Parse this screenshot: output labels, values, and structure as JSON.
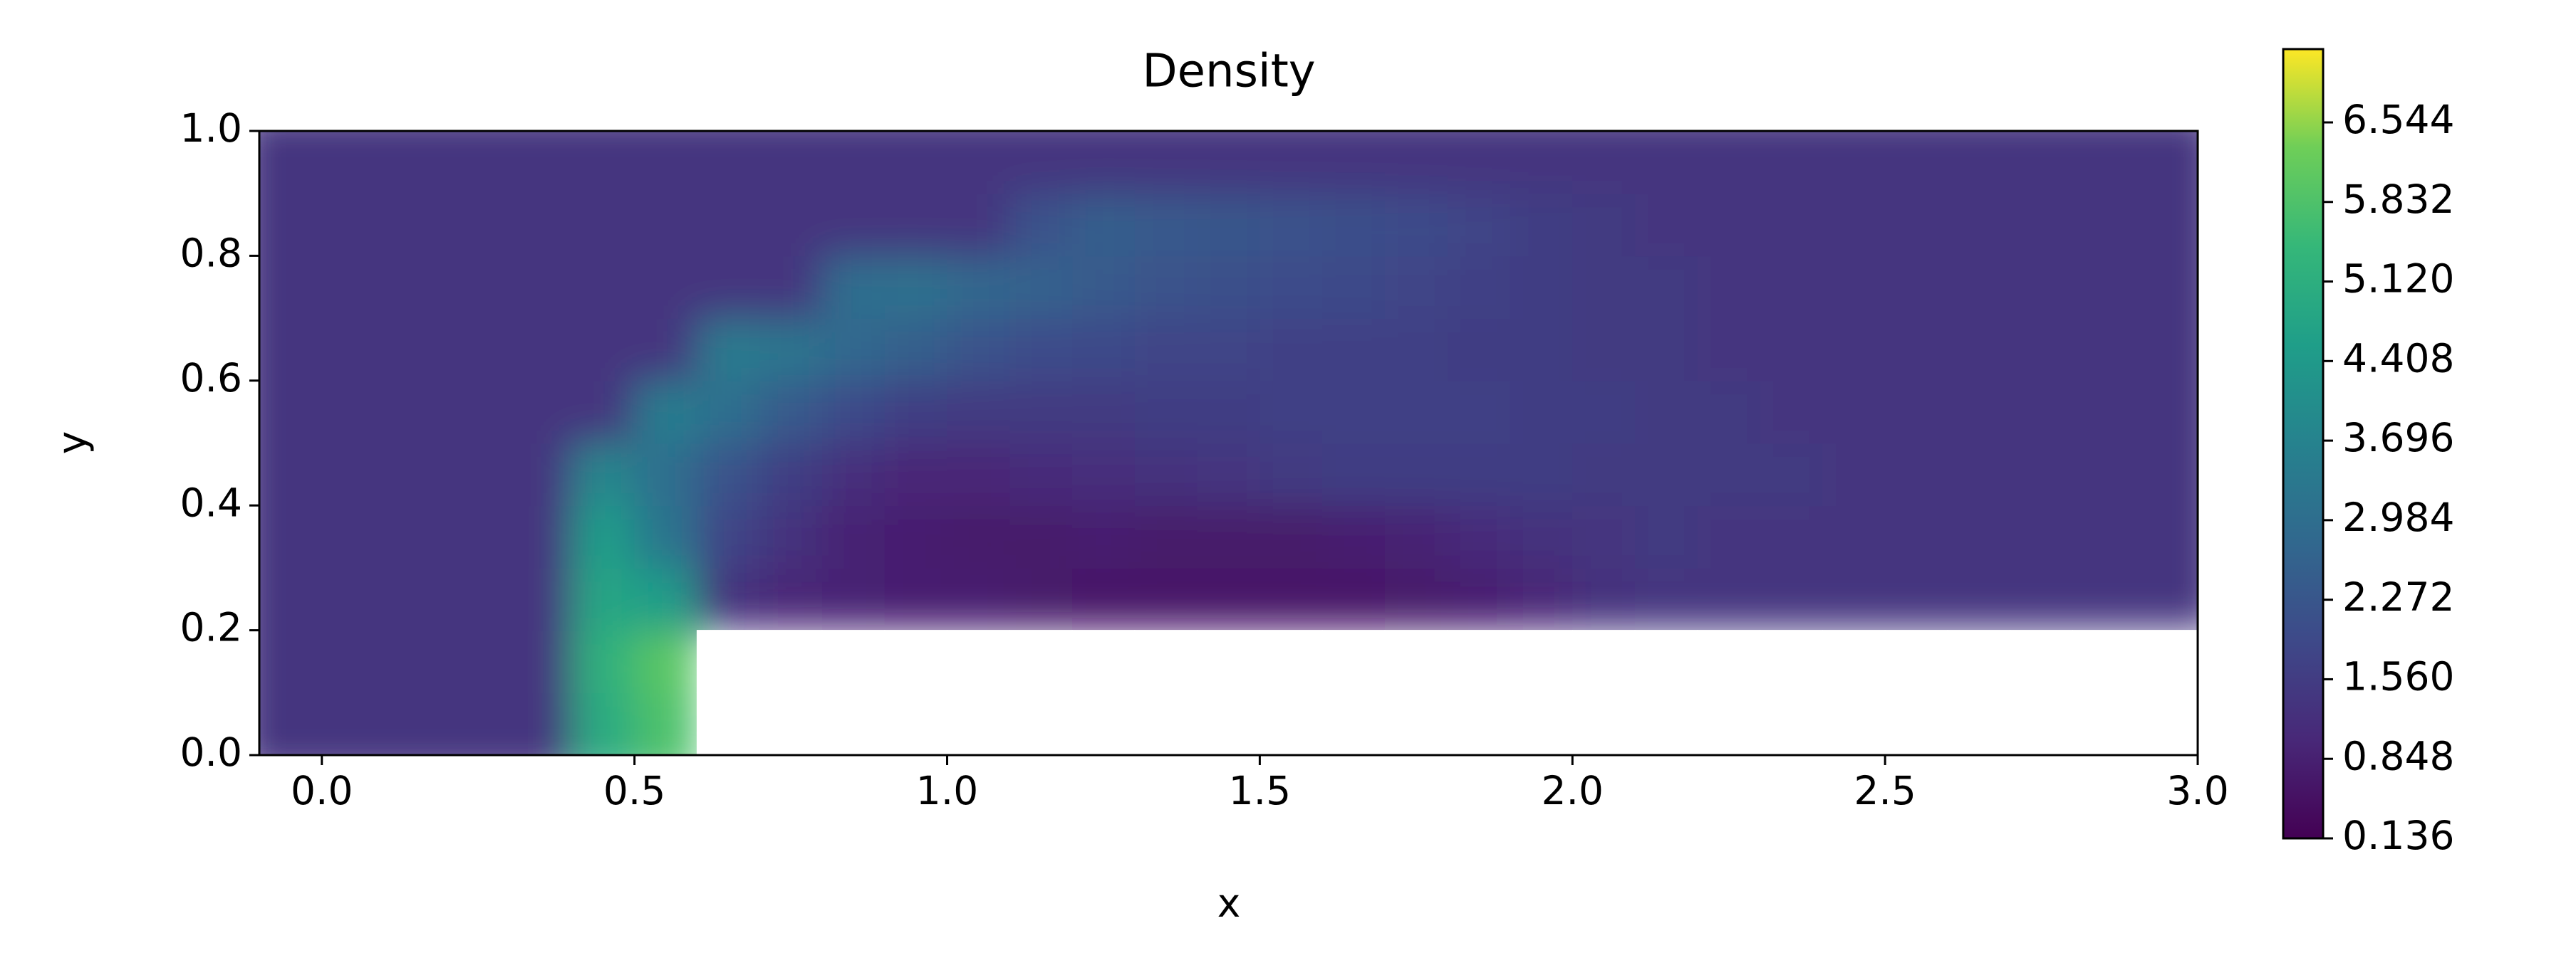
{
  "chart_data": {
    "type": "heatmap",
    "title": "Density",
    "xlabel": "x",
    "ylabel": "y",
    "xlim": [
      -0.1,
      3.0
    ],
    "ylim": [
      0,
      1
    ],
    "xticks": [
      {
        "value": 0,
        "label": "0.0"
      },
      0.5,
      {
        "value": 1,
        "label": "1.0"
      },
      1.5,
      {
        "value": 2,
        "label": "2.0"
      },
      2.5,
      {
        "value": 3,
        "label": "3.0"
      }
    ],
    "yticks": [
      {
        "value": 0,
        "label": "0.0"
      },
      0.2,
      0.4,
      0.6,
      0.8,
      {
        "value": 1,
        "label": "1.0"
      }
    ],
    "zlim": [
      0.136,
      7.2
    ],
    "zticks": [
      0.136,
      0.848,
      {
        "value": 1.56,
        "label": "1.560"
      },
      2.272,
      2.984,
      3.696,
      4.408,
      {
        "value": 5.12,
        "label": "5.120"
      },
      5.832,
      6.544
    ],
    "colormap": "viridis",
    "x": [
      -0.05,
      0.05,
      0.15,
      0.25,
      0.35,
      0.45,
      0.55,
      0.65,
      0.75,
      0.85,
      0.95,
      1.05,
      1.15,
      1.25,
      1.35,
      1.45,
      1.55,
      1.65,
      1.75,
      1.85,
      1.95,
      2.05,
      2.15,
      2.25,
      2.35,
      2.45,
      2.55,
      2.65,
      2.75,
      2.85,
      2.95
    ],
    "y": [
      0.05,
      0.15,
      0.25,
      0.35,
      0.45,
      0.55,
      0.65,
      0.75,
      0.85,
      0.95
    ],
    "z": [
      [
        1.4,
        1.4,
        1.4,
        1.4,
        1.4,
        5.0,
        5.8,
        null,
        null,
        null,
        null,
        null,
        null,
        null,
        null,
        null,
        null,
        null,
        null,
        null,
        null,
        null,
        null,
        null,
        null,
        null,
        null,
        null,
        null,
        null,
        null
      ],
      [
        1.4,
        1.4,
        1.4,
        1.4,
        1.4,
        5.2,
        6.0,
        null,
        null,
        null,
        null,
        null,
        null,
        null,
        null,
        null,
        null,
        null,
        null,
        null,
        null,
        null,
        null,
        null,
        null,
        null,
        null,
        null,
        null,
        null,
        null
      ],
      [
        1.4,
        1.4,
        1.4,
        1.4,
        1.4,
        4.8,
        4.5,
        1.3,
        1.0,
        0.9,
        0.8,
        0.8,
        0.7,
        0.6,
        0.6,
        0.6,
        0.6,
        0.6,
        0.7,
        0.8,
        1.0,
        1.3,
        1.4,
        1.4,
        1.4,
        1.4,
        1.4,
        1.4,
        1.4,
        1.4,
        1.4
      ],
      [
        1.4,
        1.4,
        1.4,
        1.4,
        1.4,
        4.5,
        3.2,
        1.8,
        1.3,
        0.9,
        0.8,
        0.7,
        0.7,
        0.8,
        0.7,
        0.7,
        0.7,
        0.8,
        0.9,
        1.1,
        1.3,
        1.4,
        1.5,
        1.4,
        1.4,
        1.4,
        1.4,
        1.4,
        1.4,
        1.4,
        1.4
      ],
      [
        1.4,
        1.4,
        1.4,
        1.4,
        1.4,
        3.8,
        3.0,
        2.2,
        1.6,
        1.2,
        1.0,
        1.0,
        1.1,
        1.2,
        1.3,
        1.4,
        1.5,
        1.6,
        1.6,
        1.6,
        1.6,
        1.5,
        1.5,
        1.5,
        1.5,
        1.4,
        1.4,
        1.4,
        1.4,
        1.4,
        1.4
      ],
      [
        1.4,
        1.4,
        1.4,
        1.4,
        1.4,
        1.4,
        3.5,
        3.0,
        2.4,
        1.9,
        1.6,
        1.5,
        1.5,
        1.5,
        1.6,
        1.6,
        1.7,
        1.7,
        1.7,
        1.7,
        1.6,
        1.6,
        1.5,
        1.5,
        1.4,
        1.4,
        1.4,
        1.4,
        1.4,
        1.4,
        1.4
      ],
      [
        1.4,
        1.4,
        1.4,
        1.4,
        1.4,
        1.4,
        1.4,
        3.4,
        3.2,
        2.8,
        2.5,
        2.2,
        2.0,
        1.9,
        1.8,
        1.8,
        1.7,
        1.7,
        1.7,
        1.6,
        1.6,
        1.5,
        1.5,
        1.4,
        1.4,
        1.4,
        1.4,
        1.4,
        1.4,
        1.4,
        1.4
      ],
      [
        1.4,
        1.4,
        1.4,
        1.4,
        1.4,
        1.4,
        1.4,
        1.4,
        1.4,
        3.0,
        3.1,
        2.8,
        2.6,
        2.4,
        2.2,
        2.1,
        2.0,
        1.9,
        1.8,
        1.7,
        1.6,
        1.5,
        1.5,
        1.4,
        1.4,
        1.4,
        1.4,
        1.4,
        1.4,
        1.4,
        1.4
      ],
      [
        1.4,
        1.4,
        1.4,
        1.4,
        1.4,
        1.4,
        1.4,
        1.4,
        1.4,
        1.4,
        1.4,
        1.4,
        2.2,
        2.5,
        2.4,
        2.3,
        2.2,
        2.1,
        2.0,
        1.8,
        1.6,
        1.5,
        1.4,
        1.4,
        1.4,
        1.4,
        1.4,
        1.4,
        1.4,
        1.4,
        1.4
      ],
      [
        1.4,
        1.4,
        1.4,
        1.4,
        1.4,
        1.4,
        1.4,
        1.4,
        1.4,
        1.4,
        1.4,
        1.4,
        1.4,
        1.4,
        1.4,
        1.4,
        1.4,
        1.4,
        1.4,
        1.4,
        1.4,
        1.4,
        1.4,
        1.4,
        1.4,
        1.4,
        1.4,
        1.4,
        1.4,
        1.4,
        1.4
      ]
    ]
  }
}
